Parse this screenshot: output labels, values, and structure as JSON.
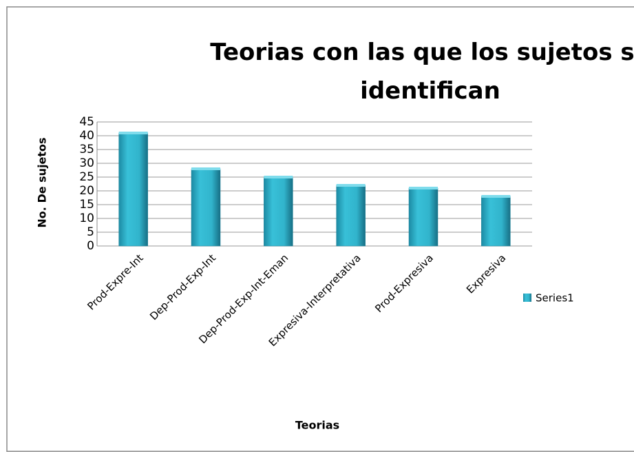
{
  "chart_data": {
    "type": "bar",
    "title": "Teorias con las que los sujetos se identifican",
    "categories": [
      "Prod-Expre-Int",
      "Dep-Prod-Exp-Int",
      "Dep-Prod-Exp-Int-Eman",
      "Expresiva-Interpretativa",
      "Prod-Expresiva",
      "Expresiva"
    ],
    "values": [
      41,
      28,
      25,
      22,
      21,
      18
    ],
    "series_name": "Series1",
    "color": "#31b4cc",
    "x_label": "Teorias",
    "y_label": "No. De sujetos",
    "ylim": [
      0,
      45
    ],
    "yticks": [
      0,
      5,
      10,
      15,
      20,
      25,
      30,
      35,
      40,
      45
    ],
    "grid": true,
    "legend": "right"
  }
}
